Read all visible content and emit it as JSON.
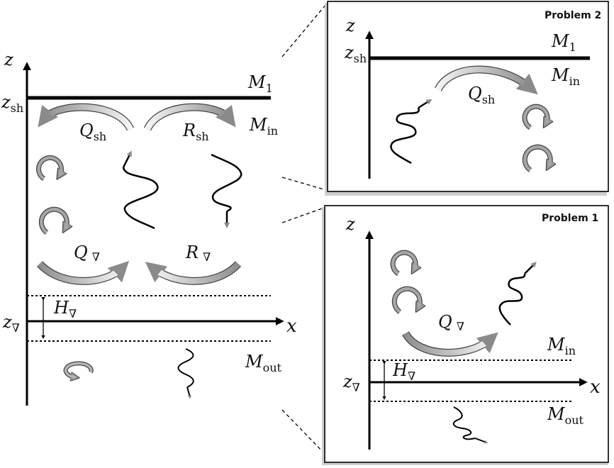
{
  "main": {
    "axis_z": "z",
    "axis_x": "x",
    "z_sh": {
      "base": "z",
      "sub": "sh"
    },
    "z_nabla": {
      "base": "z",
      "sub": "∇"
    },
    "M1": {
      "base": "M",
      "sub": "1"
    },
    "Min": {
      "base": "M",
      "sub": "in"
    },
    "Mout": {
      "base": "M",
      "sub": "out"
    },
    "Qsh": {
      "base": "Q",
      "sub": "sh"
    },
    "Rsh": {
      "base": "R",
      "sub": "sh"
    },
    "Qnabla": {
      "base": "Q",
      "sub": "∇"
    },
    "Rnabla": {
      "base": "R",
      "sub": "∇"
    },
    "Hnabla": {
      "base": "H",
      "sub": "∇"
    }
  },
  "problem2": {
    "title": "Problem 2",
    "axis_z": "z",
    "z_sh": {
      "base": "z",
      "sub": "sh"
    },
    "M1": {
      "base": "M",
      "sub": "1"
    },
    "Min": {
      "base": "M",
      "sub": "in"
    },
    "Qsh": {
      "base": "Q",
      "sub": "sh"
    }
  },
  "problem1": {
    "title": "Problem 1",
    "axis_z": "z",
    "axis_x": "x",
    "z_nabla": {
      "base": "z",
      "sub": "∇"
    },
    "Min": {
      "base": "M",
      "sub": "in"
    },
    "Mout": {
      "base": "M",
      "sub": "out"
    },
    "Qnabla": {
      "base": "Q",
      "sub": "∇"
    },
    "Hnabla": {
      "base": "H",
      "sub": "∇"
    }
  }
}
